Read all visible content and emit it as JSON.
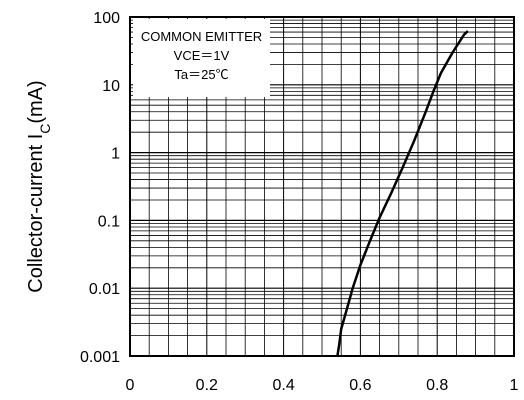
{
  "chart_data": {
    "type": "line",
    "title": "",
    "xlabel": "",
    "ylabel": "Collector-current I",
    "ylabel_sub": "C",
    "ylabel_unit": "(mA)",
    "xscale": "linear",
    "yscale": "log",
    "xlim": [
      0,
      1
    ],
    "ylim": [
      0.001,
      100
    ],
    "x_ticks": [
      0,
      0.2,
      0.4,
      0.6,
      0.8,
      1
    ],
    "x_tick_labels": [
      "0",
      "0.2",
      "0.4",
      "0.6",
      "0.8",
      "1"
    ],
    "y_ticks": [
      0.001,
      0.01,
      0.1,
      1,
      10,
      100
    ],
    "y_tick_labels": [
      "0.001",
      "0.01",
      "0.1",
      "1",
      "10",
      "100"
    ],
    "grid": true,
    "legend": {
      "placement": "top-left",
      "lines": [
        "COMMON EMITTER",
        "VCE＝1V",
        "Ta＝25℃"
      ]
    },
    "series": [
      {
        "points": [
          [
            0.54,
            0.001
          ],
          [
            0.545,
            0.0015
          ],
          [
            0.55,
            0.0025
          ],
          [
            0.565,
            0.005
          ],
          [
            0.58,
            0.01
          ],
          [
            0.6,
            0.022
          ],
          [
            0.625,
            0.05
          ],
          [
            0.65,
            0.11
          ],
          [
            0.68,
            0.25
          ],
          [
            0.71,
            0.6
          ],
          [
            0.74,
            1.5
          ],
          [
            0.77,
            4
          ],
          [
            0.79,
            8
          ],
          [
            0.81,
            15
          ],
          [
            0.84,
            30
          ],
          [
            0.87,
            55
          ],
          [
            0.88,
            62
          ]
        ]
      }
    ],
    "colors": {
      "line": "#000000",
      "grid": "#000000",
      "background": "#ffffff"
    }
  }
}
